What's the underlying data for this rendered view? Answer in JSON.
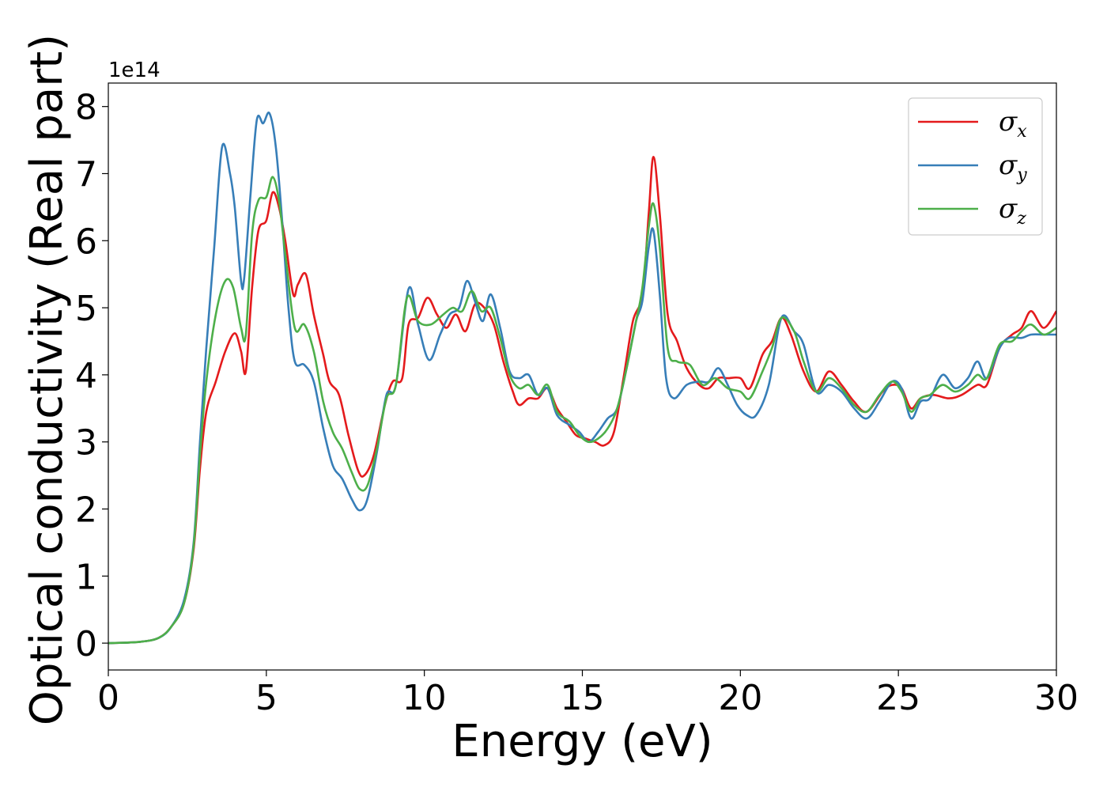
{
  "chart_data": {
    "type": "line",
    "title": "",
    "xlabel": "Energy (eV)",
    "ylabel": "Optical conductivity (Real part)",
    "y_offset_label": "1e14",
    "xlim": [
      0,
      30
    ],
    "ylim": [
      -0.4,
      8.35
    ],
    "xticks": [
      0,
      5,
      10,
      15,
      20,
      25,
      30
    ],
    "yticks": [
      0,
      1,
      2,
      3,
      4,
      5,
      6,
      7,
      8
    ],
    "grid": false,
    "legend_position": "top-right",
    "series": [
      {
        "name": "σx",
        "symbol": "σ",
        "subscript": "x",
        "color": "#e41a1c",
        "points": [
          [
            0,
            0
          ],
          [
            1,
            0.02
          ],
          [
            1.6,
            0.08
          ],
          [
            2,
            0.25
          ],
          [
            2.4,
            0.6
          ],
          [
            2.7,
            1.4
          ],
          [
            2.9,
            2.6
          ],
          [
            3.1,
            3.45
          ],
          [
            3.4,
            3.9
          ],
          [
            3.7,
            4.35
          ],
          [
            4.0,
            4.62
          ],
          [
            4.2,
            4.35
          ],
          [
            4.35,
            4.05
          ],
          [
            4.55,
            5.3
          ],
          [
            4.75,
            6.15
          ],
          [
            5.0,
            6.3
          ],
          [
            5.2,
            6.72
          ],
          [
            5.4,
            6.5
          ],
          [
            5.6,
            6.0
          ],
          [
            5.85,
            5.2
          ],
          [
            6.0,
            5.35
          ],
          [
            6.25,
            5.5
          ],
          [
            6.5,
            4.9
          ],
          [
            6.8,
            4.3
          ],
          [
            7.0,
            3.9
          ],
          [
            7.3,
            3.7
          ],
          [
            7.6,
            3.1
          ],
          [
            7.9,
            2.58
          ],
          [
            8.1,
            2.5
          ],
          [
            8.4,
            2.8
          ],
          [
            8.75,
            3.55
          ],
          [
            9.0,
            3.9
          ],
          [
            9.3,
            3.95
          ],
          [
            9.5,
            4.75
          ],
          [
            9.8,
            4.85
          ],
          [
            10.1,
            5.15
          ],
          [
            10.4,
            4.9
          ],
          [
            10.7,
            4.7
          ],
          [
            11.0,
            4.9
          ],
          [
            11.3,
            4.65
          ],
          [
            11.6,
            5.05
          ],
          [
            11.9,
            5.0
          ],
          [
            12.2,
            4.75
          ],
          [
            12.5,
            4.2
          ],
          [
            12.8,
            3.75
          ],
          [
            13.0,
            3.55
          ],
          [
            13.3,
            3.65
          ],
          [
            13.6,
            3.65
          ],
          [
            13.9,
            3.8
          ],
          [
            14.2,
            3.5
          ],
          [
            14.5,
            3.3
          ],
          [
            14.8,
            3.1
          ],
          [
            15.1,
            3.05
          ],
          [
            15.4,
            3.0
          ],
          [
            15.7,
            2.95
          ],
          [
            16.0,
            3.15
          ],
          [
            16.3,
            3.95
          ],
          [
            16.6,
            4.8
          ],
          [
            16.9,
            5.2
          ],
          [
            17.1,
            6.4
          ],
          [
            17.25,
            7.25
          ],
          [
            17.45,
            6.4
          ],
          [
            17.7,
            4.9
          ],
          [
            18.0,
            4.5
          ],
          [
            18.3,
            4.1
          ],
          [
            18.7,
            3.85
          ],
          [
            19.0,
            3.8
          ],
          [
            19.3,
            3.95
          ],
          [
            19.6,
            3.95
          ],
          [
            20.0,
            3.95
          ],
          [
            20.3,
            3.8
          ],
          [
            20.7,
            4.3
          ],
          [
            21.0,
            4.5
          ],
          [
            21.3,
            4.85
          ],
          [
            21.6,
            4.6
          ],
          [
            22.0,
            4.05
          ],
          [
            22.4,
            3.75
          ],
          [
            22.8,
            4.05
          ],
          [
            23.2,
            3.85
          ],
          [
            23.6,
            3.6
          ],
          [
            24.0,
            3.45
          ],
          [
            24.5,
            3.75
          ],
          [
            24.8,
            3.85
          ],
          [
            25.1,
            3.8
          ],
          [
            25.4,
            3.5
          ],
          [
            25.7,
            3.65
          ],
          [
            26.1,
            3.7
          ],
          [
            26.6,
            3.65
          ],
          [
            27.0,
            3.7
          ],
          [
            27.5,
            3.85
          ],
          [
            27.8,
            3.85
          ],
          [
            28.2,
            4.4
          ],
          [
            28.6,
            4.6
          ],
          [
            28.9,
            4.7
          ],
          [
            29.2,
            4.95
          ],
          [
            29.6,
            4.7
          ],
          [
            30.0,
            4.95
          ]
        ]
      },
      {
        "name": "σy",
        "symbol": "σ",
        "subscript": "y",
        "color": "#377eb8",
        "points": [
          [
            0,
            0
          ],
          [
            1,
            0.02
          ],
          [
            1.6,
            0.08
          ],
          [
            2,
            0.25
          ],
          [
            2.4,
            0.65
          ],
          [
            2.7,
            1.5
          ],
          [
            2.9,
            3.0
          ],
          [
            3.1,
            4.4
          ],
          [
            3.35,
            5.9
          ],
          [
            3.6,
            7.4
          ],
          [
            3.85,
            7.0
          ],
          [
            4.0,
            6.5
          ],
          [
            4.2,
            5.4
          ],
          [
            4.3,
            5.45
          ],
          [
            4.5,
            6.7
          ],
          [
            4.7,
            7.8
          ],
          [
            4.9,
            7.75
          ],
          [
            5.1,
            7.9
          ],
          [
            5.3,
            7.4
          ],
          [
            5.5,
            6.3
          ],
          [
            5.7,
            5.0
          ],
          [
            5.9,
            4.2
          ],
          [
            6.2,
            4.15
          ],
          [
            6.5,
            3.9
          ],
          [
            6.8,
            3.2
          ],
          [
            7.1,
            2.65
          ],
          [
            7.4,
            2.45
          ],
          [
            7.7,
            2.15
          ],
          [
            7.95,
            1.98
          ],
          [
            8.2,
            2.15
          ],
          [
            8.5,
            2.85
          ],
          [
            8.8,
            3.7
          ],
          [
            9.1,
            3.85
          ],
          [
            9.5,
            5.28
          ],
          [
            9.8,
            4.75
          ],
          [
            10.15,
            4.22
          ],
          [
            10.5,
            4.6
          ],
          [
            10.8,
            4.9
          ],
          [
            11.1,
            5.0
          ],
          [
            11.35,
            5.4
          ],
          [
            11.6,
            5.1
          ],
          [
            11.85,
            4.8
          ],
          [
            12.1,
            5.2
          ],
          [
            12.4,
            4.7
          ],
          [
            12.7,
            4.05
          ],
          [
            13.0,
            3.95
          ],
          [
            13.3,
            4.0
          ],
          [
            13.6,
            3.7
          ],
          [
            13.9,
            3.8
          ],
          [
            14.2,
            3.4
          ],
          [
            14.6,
            3.25
          ],
          [
            14.9,
            3.15
          ],
          [
            15.2,
            3.0
          ],
          [
            15.5,
            3.15
          ],
          [
            15.8,
            3.35
          ],
          [
            16.1,
            3.5
          ],
          [
            16.4,
            4.1
          ],
          [
            16.7,
            4.8
          ],
          [
            16.9,
            5.1
          ],
          [
            17.1,
            5.9
          ],
          [
            17.25,
            6.15
          ],
          [
            17.45,
            5.2
          ],
          [
            17.65,
            3.95
          ],
          [
            17.9,
            3.65
          ],
          [
            18.3,
            3.85
          ],
          [
            18.7,
            3.9
          ],
          [
            19.0,
            3.9
          ],
          [
            19.3,
            4.1
          ],
          [
            19.6,
            3.85
          ],
          [
            19.9,
            3.55
          ],
          [
            20.2,
            3.4
          ],
          [
            20.5,
            3.4
          ],
          [
            20.9,
            3.85
          ],
          [
            21.3,
            4.85
          ],
          [
            21.7,
            4.65
          ],
          [
            22.0,
            4.45
          ],
          [
            22.4,
            3.75
          ],
          [
            22.8,
            3.85
          ],
          [
            23.2,
            3.75
          ],
          [
            23.6,
            3.5
          ],
          [
            24.0,
            3.35
          ],
          [
            24.4,
            3.6
          ],
          [
            24.8,
            3.9
          ],
          [
            25.1,
            3.8
          ],
          [
            25.4,
            3.35
          ],
          [
            25.7,
            3.6
          ],
          [
            26.0,
            3.65
          ],
          [
            26.4,
            4.0
          ],
          [
            26.8,
            3.8
          ],
          [
            27.2,
            3.95
          ],
          [
            27.5,
            4.2
          ],
          [
            27.8,
            3.95
          ],
          [
            28.2,
            4.4
          ],
          [
            28.5,
            4.55
          ],
          [
            28.9,
            4.55
          ],
          [
            29.2,
            4.6
          ],
          [
            29.6,
            4.6
          ],
          [
            30.0,
            4.6
          ]
        ]
      },
      {
        "name": "σz",
        "symbol": "σ",
        "subscript": "z",
        "color": "#4daf4a",
        "points": [
          [
            0,
            0
          ],
          [
            1,
            0.02
          ],
          [
            1.6,
            0.08
          ],
          [
            2,
            0.25
          ],
          [
            2.4,
            0.6
          ],
          [
            2.7,
            1.45
          ],
          [
            2.9,
            2.8
          ],
          [
            3.1,
            3.9
          ],
          [
            3.4,
            4.9
          ],
          [
            3.7,
            5.4
          ],
          [
            3.95,
            5.3
          ],
          [
            4.2,
            4.7
          ],
          [
            4.35,
            4.6
          ],
          [
            4.55,
            6.1
          ],
          [
            4.75,
            6.6
          ],
          [
            5.0,
            6.65
          ],
          [
            5.2,
            6.95
          ],
          [
            5.4,
            6.6
          ],
          [
            5.6,
            5.8
          ],
          [
            5.9,
            4.7
          ],
          [
            6.2,
            4.75
          ],
          [
            6.5,
            4.35
          ],
          [
            6.8,
            3.6
          ],
          [
            7.1,
            3.15
          ],
          [
            7.4,
            2.9
          ],
          [
            7.7,
            2.55
          ],
          [
            7.95,
            2.3
          ],
          [
            8.2,
            2.35
          ],
          [
            8.5,
            2.9
          ],
          [
            8.8,
            3.65
          ],
          [
            9.1,
            3.85
          ],
          [
            9.45,
            5.15
          ],
          [
            9.8,
            4.8
          ],
          [
            10.2,
            4.75
          ],
          [
            10.6,
            4.9
          ],
          [
            10.9,
            5.0
          ],
          [
            11.2,
            4.95
          ],
          [
            11.5,
            5.25
          ],
          [
            11.8,
            4.95
          ],
          [
            12.1,
            5.0
          ],
          [
            12.4,
            4.55
          ],
          [
            12.7,
            4.0
          ],
          [
            13.0,
            3.8
          ],
          [
            13.3,
            3.85
          ],
          [
            13.6,
            3.7
          ],
          [
            13.9,
            3.85
          ],
          [
            14.2,
            3.45
          ],
          [
            14.6,
            3.3
          ],
          [
            14.9,
            3.1
          ],
          [
            15.2,
            3.0
          ],
          [
            15.5,
            3.05
          ],
          [
            15.8,
            3.2
          ],
          [
            16.1,
            3.5
          ],
          [
            16.4,
            4.1
          ],
          [
            16.7,
            4.8
          ],
          [
            16.9,
            5.3
          ],
          [
            17.1,
            6.2
          ],
          [
            17.25,
            6.55
          ],
          [
            17.45,
            5.9
          ],
          [
            17.7,
            4.4
          ],
          [
            18.0,
            4.2
          ],
          [
            18.4,
            4.15
          ],
          [
            18.8,
            3.85
          ],
          [
            19.2,
            3.95
          ],
          [
            19.6,
            3.8
          ],
          [
            20.0,
            3.75
          ],
          [
            20.3,
            3.65
          ],
          [
            20.7,
            4.05
          ],
          [
            21.0,
            4.4
          ],
          [
            21.3,
            4.85
          ],
          [
            21.7,
            4.65
          ],
          [
            22.0,
            4.2
          ],
          [
            22.4,
            3.75
          ],
          [
            22.8,
            3.95
          ],
          [
            23.2,
            3.8
          ],
          [
            23.6,
            3.55
          ],
          [
            24.0,
            3.45
          ],
          [
            24.4,
            3.7
          ],
          [
            24.8,
            3.9
          ],
          [
            25.1,
            3.75
          ],
          [
            25.4,
            3.45
          ],
          [
            25.7,
            3.65
          ],
          [
            26.0,
            3.7
          ],
          [
            26.4,
            3.85
          ],
          [
            26.8,
            3.75
          ],
          [
            27.2,
            3.85
          ],
          [
            27.5,
            4.0
          ],
          [
            27.8,
            3.95
          ],
          [
            28.2,
            4.45
          ],
          [
            28.6,
            4.5
          ],
          [
            28.9,
            4.65
          ],
          [
            29.2,
            4.75
          ],
          [
            29.6,
            4.6
          ],
          [
            30.0,
            4.7
          ]
        ]
      }
    ]
  }
}
